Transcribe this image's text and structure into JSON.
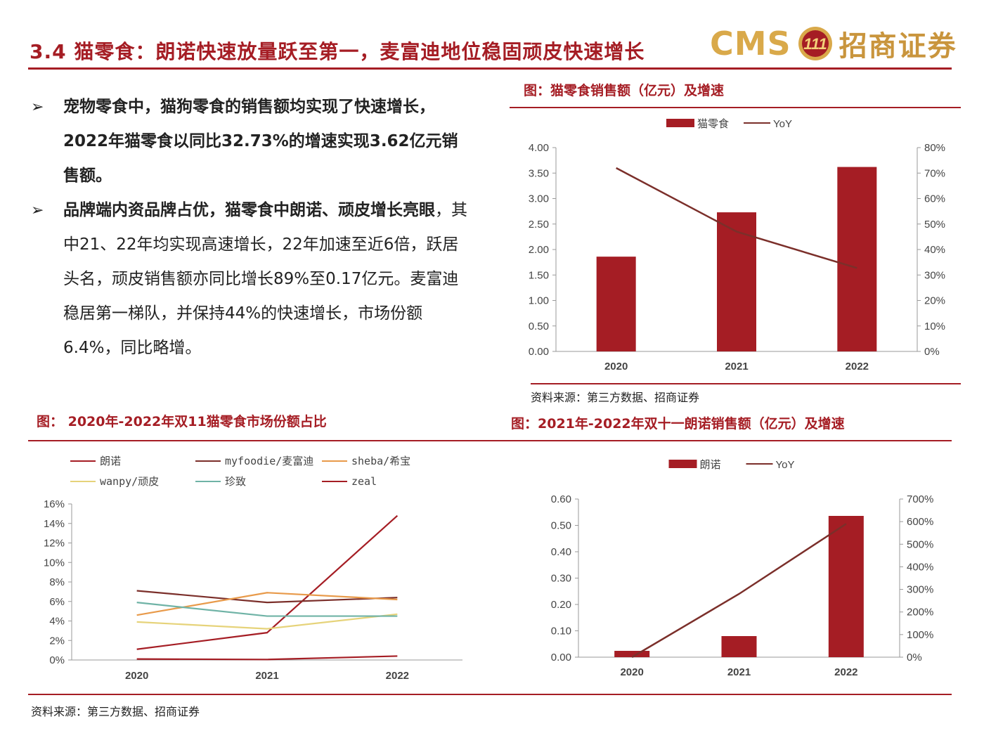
{
  "header": {
    "title": "3.4 猫零食：朗诺快速放量跃至第一，麦富迪地位稳固顽皮快速增长",
    "logo_cms": "CMS",
    "logo_cn": "招商证券"
  },
  "bullets": [
    {
      "text": "宠物零食中，猫狗零食的销售额均实现了快速增长，2022年猫零食以同比32.73%的增速实现3.62亿元销售额。"
    },
    {
      "bold": "品牌端内资品牌占优，猫零食中朗诺、顽皮增长亮眼",
      "rest": "，其中21、22年均实现高速增长，22年加速至近6倍，跃居头名，顽皮销售额亦同比增长89%至0.17亿元。麦富迪稳居第一梯队，并保持44%的快速增长，市场份额6.4%，同比略增。"
    }
  ],
  "charts": {
    "c1_title": "图：猫零食销售额（亿元）及增速",
    "c2_title": "图： 2020年-2022年双11猫零食市场份额占比",
    "c3_title": "图：2021年-2022年双十一朗诺销售额（亿元）及增速",
    "source1": "资料来源：第三方数据、招商证券",
    "source2": "资料来源：第三方数据、招商证券"
  },
  "colors": {
    "bar": "#a51d24",
    "line": "#7b2f2a",
    "accent": "#a51d24"
  },
  "chart_data": [
    {
      "type": "bar",
      "title": "图：猫零食销售额（亿元）及增速",
      "categories": [
        "2020",
        "2021",
        "2022"
      ],
      "series": [
        {
          "name": "猫零食",
          "kind": "bar",
          "axis": "left",
          "values": [
            1.86,
            2.73,
            3.62
          ]
        },
        {
          "name": "YoY",
          "kind": "line",
          "axis": "right",
          "values": [
            72,
            47,
            32.73
          ]
        }
      ],
      "ylim": [
        0,
        4
      ],
      "yticks": [
        "0.00",
        "0.50",
        "1.00",
        "1.50",
        "2.00",
        "2.50",
        "3.00",
        "3.50",
        "4.00"
      ],
      "y2lim": [
        0,
        80
      ],
      "y2ticks": [
        "0%",
        "10%",
        "20%",
        "30%",
        "40%",
        "50%",
        "60%",
        "70%",
        "80%"
      ],
      "legend": "top-center"
    },
    {
      "type": "line",
      "title": "图： 2020年-2022年双11猫零食市场份额占比",
      "categories": [
        "2020",
        "2021",
        "2022"
      ],
      "series": [
        {
          "name": "朗诺",
          "color": "#a51d24",
          "values": [
            1.1,
            2.8,
            14.8
          ]
        },
        {
          "name": "myfoodie/麦富迪",
          "color": "#7b2f2a",
          "values": [
            7.1,
            5.9,
            6.4
          ]
        },
        {
          "name": "sheba/希宝",
          "color": "#e89a4a",
          "values": [
            4.6,
            6.9,
            6.2
          ]
        },
        {
          "name": "wanpy/顽皮",
          "color": "#e6d37a",
          "values": [
            3.9,
            3.2,
            4.7
          ]
        },
        {
          "name": "珍致",
          "color": "#6fb3a6",
          "values": [
            5.9,
            4.5,
            4.5
          ]
        },
        {
          "name": "zeal",
          "color": "#a51d24",
          "values": [
            0.1,
            0.05,
            0.4
          ]
        }
      ],
      "ylim": [
        0,
        16
      ],
      "yticks": [
        "0%",
        "2%",
        "4%",
        "6%",
        "8%",
        "10%",
        "12%",
        "14%",
        "16%"
      ],
      "legend": "top"
    },
    {
      "type": "bar",
      "title": "图：2021年-2022年双十一朗诺销售额（亿元）及增速",
      "categories": [
        "2020",
        "2021",
        "2022"
      ],
      "series": [
        {
          "name": "朗诺",
          "kind": "bar",
          "axis": "left",
          "values": [
            0.024,
            0.08,
            0.536
          ]
        },
        {
          "name": "YoY",
          "kind": "line",
          "axis": "right",
          "values": [
            0,
            280,
            590
          ]
        }
      ],
      "ylim": [
        0,
        0.6
      ],
      "yticks": [
        "0.00",
        "0.10",
        "0.20",
        "0.30",
        "0.40",
        "0.50",
        "0.60"
      ],
      "y2lim": [
        0,
        700
      ],
      "y2ticks": [
        "0%",
        "100%",
        "200%",
        "300%",
        "400%",
        "500%",
        "600%",
        "700%"
      ],
      "legend": "top-center"
    }
  ]
}
